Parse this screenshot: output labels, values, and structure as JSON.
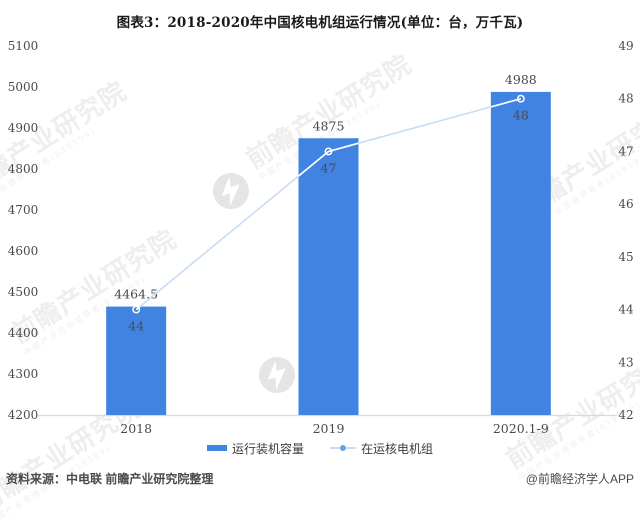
{
  "title": "图表3：2018-2020年中国核电机组运行情况(单位：台，万千瓦)",
  "chart_data": {
    "type": "bar",
    "subtype": "bar+line combo, dual axis",
    "categories": [
      "2018",
      "2019",
      "2020.1-9"
    ],
    "series": [
      {
        "name": "运行装机容量",
        "type": "bar",
        "axis": "left",
        "unit": "万千瓦",
        "values": [
          4464.5,
          4875,
          4988
        ],
        "labels": [
          "4464.5",
          "4875",
          "4988"
        ]
      },
      {
        "name": "在运核电机组",
        "type": "line",
        "axis": "right",
        "unit": "台",
        "values": [
          44,
          47,
          48
        ],
        "labels": [
          "44",
          "47",
          "48"
        ]
      }
    ],
    "left_axis": {
      "min": 4200,
      "max": 5100,
      "step": 100,
      "ticks": [
        "5100",
        "5000",
        "4900",
        "4800",
        "4700",
        "4600",
        "4500",
        "4400",
        "4300",
        "4200"
      ]
    },
    "right_axis": {
      "min": 42,
      "max": 49,
      "step": 1,
      "ticks": [
        "49",
        "48",
        "47",
        "46",
        "45",
        "44",
        "43",
        "42"
      ]
    },
    "grid": false,
    "legend_position": "bottom"
  },
  "legend": {
    "items": [
      {
        "label": "运行装机容量",
        "swatch": "bar"
      },
      {
        "label": "在运核电机组",
        "swatch": "line"
      }
    ]
  },
  "footer": {
    "source": "资料来源：中电联 前瞻产业研究院整理",
    "credit": "@前瞻经济学人APP"
  },
  "watermark": {
    "text": "前瞻产业研究院",
    "subtext": "中国产业咨询领导者(839599)"
  },
  "colors": {
    "bar": "#4183E1",
    "line": "#C7DDF6",
    "marker_stroke": "#FFFFFF",
    "legend_dot": "#6FA3E0",
    "axis_line": "#D9D9D9",
    "text": "#3D3D3D",
    "tick_text": "#4A4A4A",
    "data_label": "#3D3D3D",
    "footer_text": "#4A4A4A"
  }
}
